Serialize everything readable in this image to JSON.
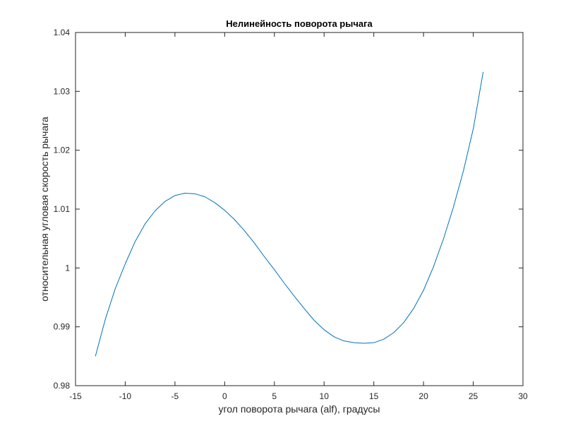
{
  "chart_data": {
    "type": "line",
    "title": "Нелинейность поворота рычага",
    "xlabel": "угол поворота рычага (alf), градусы",
    "ylabel": "относительная угловая скорость рычага",
    "xlim": [
      -15,
      30
    ],
    "ylim": [
      0.98,
      1.04
    ],
    "xticks": [
      -15,
      -10,
      -5,
      0,
      5,
      10,
      15,
      20,
      25,
      30
    ],
    "xtick_labels": [
      "-15",
      "-10",
      "-5",
      "0",
      "5",
      "10",
      "15",
      "20",
      "25",
      "30"
    ],
    "yticks": [
      0.98,
      0.99,
      1.0,
      1.01,
      1.02,
      1.03,
      1.04
    ],
    "ytick_labels": [
      "0.98",
      "0.99",
      "1",
      "1.01",
      "1.02",
      "1.03",
      "1.04"
    ],
    "grid": false,
    "box": true,
    "series": [
      {
        "color": "#0072BD",
        "x": [
          -13,
          -12,
          -11,
          -10,
          -9,
          -8,
          -7,
          -6,
          -5,
          -4,
          -3,
          -2,
          -1,
          0,
          1,
          2,
          3,
          4,
          5,
          6,
          7,
          8,
          9,
          10,
          11,
          12,
          13,
          14,
          15,
          16,
          17,
          18,
          19,
          20,
          21,
          22,
          23,
          24,
          25,
          26
        ],
        "y": [
          0.985,
          0.9913,
          0.9965,
          1.0007,
          1.0045,
          1.0075,
          1.0097,
          1.0113,
          1.0123,
          1.0127,
          1.0126,
          1.0121,
          1.0111,
          1.0098,
          1.0082,
          1.0063,
          1.0042,
          1.0019,
          0.9997,
          0.9974,
          0.9952,
          0.9931,
          0.9911,
          0.9895,
          0.9883,
          0.9876,
          0.9873,
          0.9872,
          0.9873,
          0.9879,
          0.989,
          0.9907,
          0.9931,
          0.9962,
          1.0002,
          1.0049,
          1.0103,
          1.0164,
          1.0236,
          1.0333
        ]
      }
    ]
  }
}
